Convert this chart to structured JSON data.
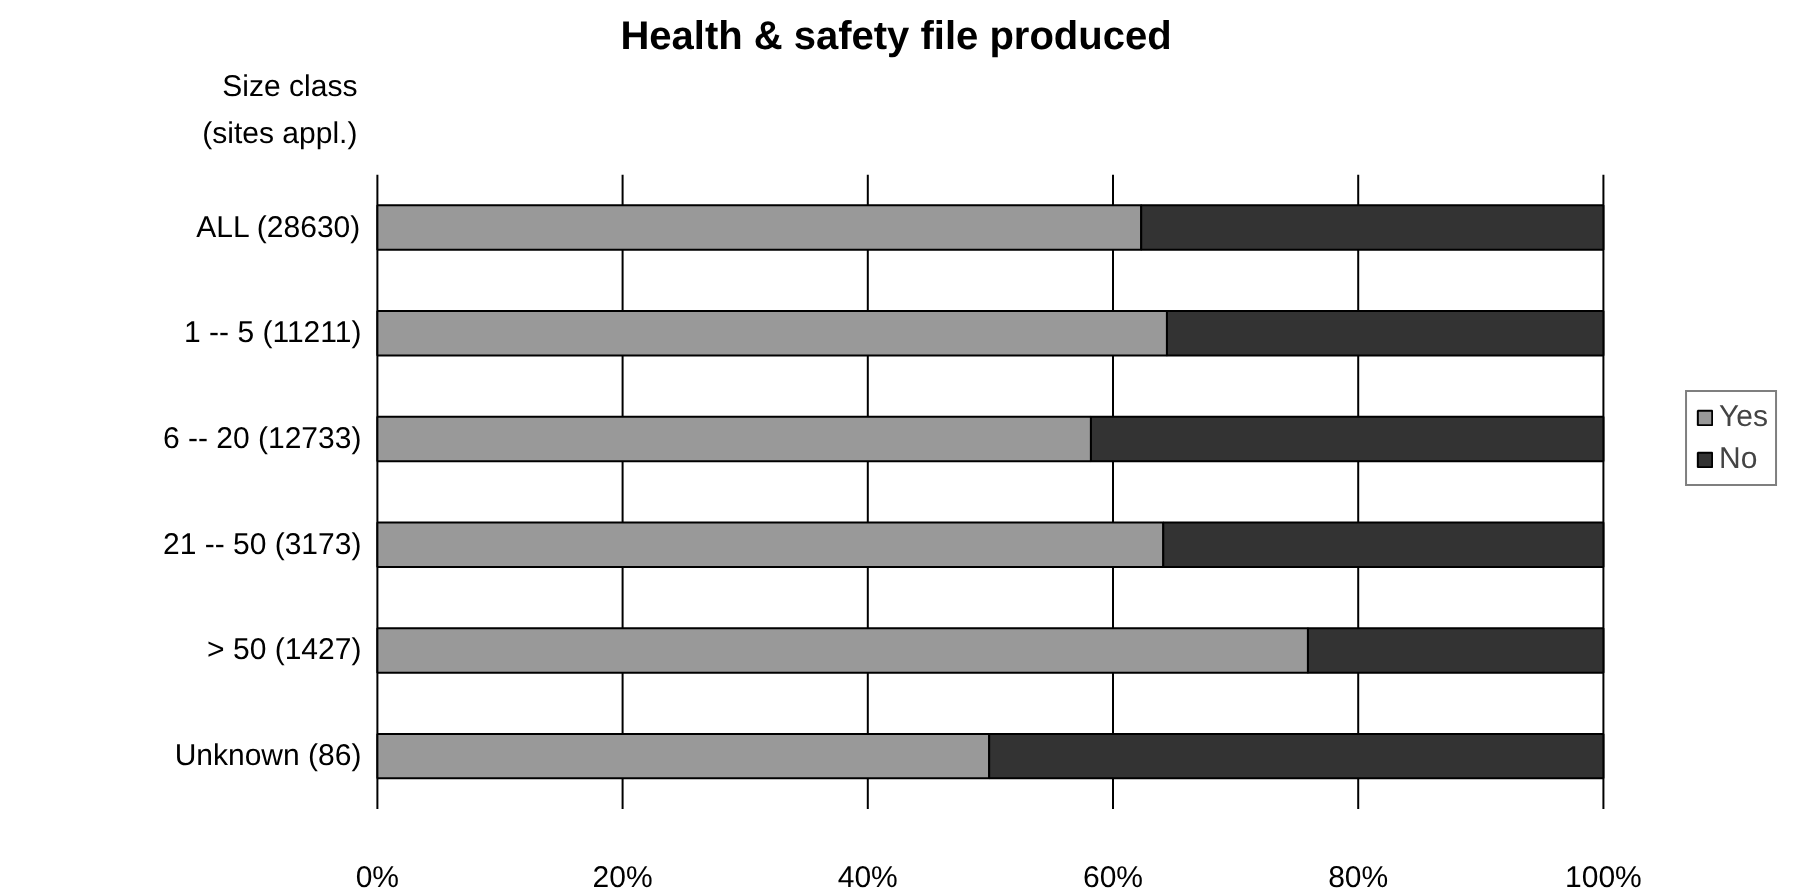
{
  "chart_data": {
    "type": "bar",
    "orientation": "horizontal",
    "stacked": true,
    "title": "Health & safety file produced",
    "ylabel": "Size class\n(sites appl.)",
    "categories": [
      "ALL (28630)",
      "1 -- 5 (11211)",
      "6 -- 20 (12733)",
      "21 -- 50 (3173)",
      "> 50 (1427)",
      "Unknown (86)"
    ],
    "series": [
      {
        "name": "Yes",
        "color": "#999999",
        "values": [
          62.3,
          64.4,
          58.2,
          64.1,
          75.9,
          49.9
        ]
      },
      {
        "name": "No",
        "color": "#333333",
        "values": [
          37.7,
          35.6,
          41.8,
          35.9,
          24.1,
          50.1
        ]
      }
    ],
    "xlim": [
      0,
      100
    ],
    "xticks": [
      {
        "value": 0,
        "label": "0%"
      },
      {
        "value": 20,
        "label": "20%"
      },
      {
        "value": 40,
        "label": "40%"
      },
      {
        "value": 60,
        "label": "60%"
      },
      {
        "value": 80,
        "label": "80%"
      },
      {
        "value": 100,
        "label": "100%"
      }
    ],
    "grid": "x",
    "legend": "right"
  }
}
